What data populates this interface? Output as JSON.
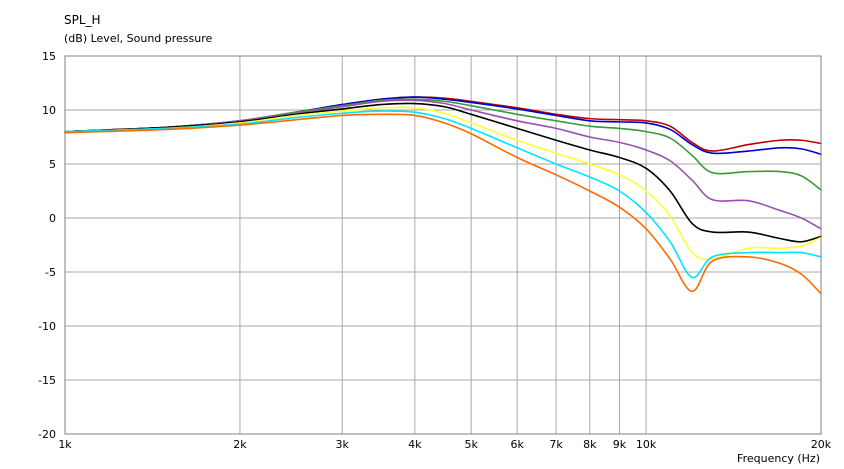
{
  "chart_data": {
    "type": "line",
    "title": "SPL_H",
    "subtitle": "(dB)  Level, Sound pressure",
    "xlabel": "Frequency  (Hz)",
    "ylabel": "(dB)  Level, Sound pressure",
    "x_scale": "log",
    "xlim": [
      1000,
      20000
    ],
    "ylim": [
      -20,
      15
    ],
    "grid": true,
    "x_ticks": [
      1000,
      2000,
      3000,
      4000,
      5000,
      6000,
      7000,
      8000,
      9000,
      10000,
      20000
    ],
    "x_tick_labels": [
      "1k",
      "2k",
      "3k",
      "4k",
      "5k",
      "6k",
      "7k",
      "8k",
      "9k",
      "10k",
      "20k"
    ],
    "y_ticks": [
      15,
      10,
      5,
      0,
      -5,
      -10,
      -15,
      -20
    ],
    "y_tick_labels": [
      "15",
      "10",
      "5",
      "0",
      "-5",
      "-10",
      "-15",
      "-20"
    ],
    "x": [
      1000,
      1500,
      2000,
      2500,
      3000,
      3500,
      4000,
      4500,
      5000,
      6000,
      7000,
      8000,
      9000,
      10000,
      11000,
      12000,
      13000,
      15000,
      17000,
      18500,
      20000
    ],
    "series": [
      {
        "color": "#c00000",
        "values": [
          8.0,
          8.4,
          9.0,
          9.8,
          10.5,
          11.0,
          11.2,
          11.1,
          10.8,
          10.2,
          9.6,
          9.2,
          9.1,
          9.0,
          8.5,
          7.0,
          6.2,
          6.8,
          7.2,
          7.2,
          6.9
        ]
      },
      {
        "color": "#0000cc",
        "values": [
          8.0,
          8.4,
          9.0,
          9.8,
          10.5,
          11.0,
          11.2,
          11.0,
          10.7,
          10.1,
          9.5,
          9.0,
          8.9,
          8.8,
          8.2,
          6.8,
          6.0,
          6.2,
          6.5,
          6.4,
          5.9
        ]
      },
      {
        "color": "#3a9a3a",
        "values": [
          8.0,
          8.4,
          9.0,
          9.8,
          10.4,
          10.9,
          11.0,
          10.8,
          10.4,
          9.6,
          9.0,
          8.5,
          8.3,
          8.0,
          7.4,
          5.8,
          4.2,
          4.3,
          4.3,
          3.9,
          2.6
        ]
      },
      {
        "color": "#9b4fb0",
        "values": [
          8.0,
          8.4,
          9.0,
          9.7,
          10.3,
          10.8,
          10.9,
          10.6,
          10.0,
          9.0,
          8.3,
          7.5,
          7.0,
          6.3,
          5.3,
          3.5,
          1.7,
          1.6,
          0.7,
          0.0,
          -1.0
        ]
      },
      {
        "color": "#000000",
        "values": [
          8.0,
          8.4,
          8.9,
          9.6,
          10.1,
          10.5,
          10.6,
          10.3,
          9.6,
          8.3,
          7.2,
          6.3,
          5.6,
          4.6,
          2.5,
          -0.5,
          -1.3,
          -1.3,
          -1.9,
          -2.2,
          -1.7
        ]
      },
      {
        "color": "#ffff33",
        "values": [
          8.0,
          8.3,
          8.8,
          9.5,
          9.9,
          10.2,
          10.2,
          9.7,
          8.8,
          7.2,
          6.0,
          5.0,
          4.0,
          2.5,
          0.2,
          -3.2,
          -3.8,
          -2.8,
          -2.8,
          -2.6,
          -1.8
        ]
      },
      {
        "color": "#00e5ff",
        "values": [
          8.0,
          8.3,
          8.7,
          9.3,
          9.7,
          9.9,
          9.8,
          9.2,
          8.3,
          6.5,
          5.0,
          3.8,
          2.5,
          0.5,
          -2.2,
          -5.5,
          -3.6,
          -3.2,
          -3.2,
          -3.2,
          -3.6
        ]
      },
      {
        "color": "#ff6a00",
        "values": [
          7.9,
          8.2,
          8.6,
          9.1,
          9.5,
          9.6,
          9.5,
          8.8,
          7.8,
          5.6,
          4.0,
          2.5,
          1.0,
          -1.0,
          -3.8,
          -6.8,
          -4.0,
          -3.6,
          -4.2,
          -5.2,
          -7.0
        ]
      }
    ]
  }
}
